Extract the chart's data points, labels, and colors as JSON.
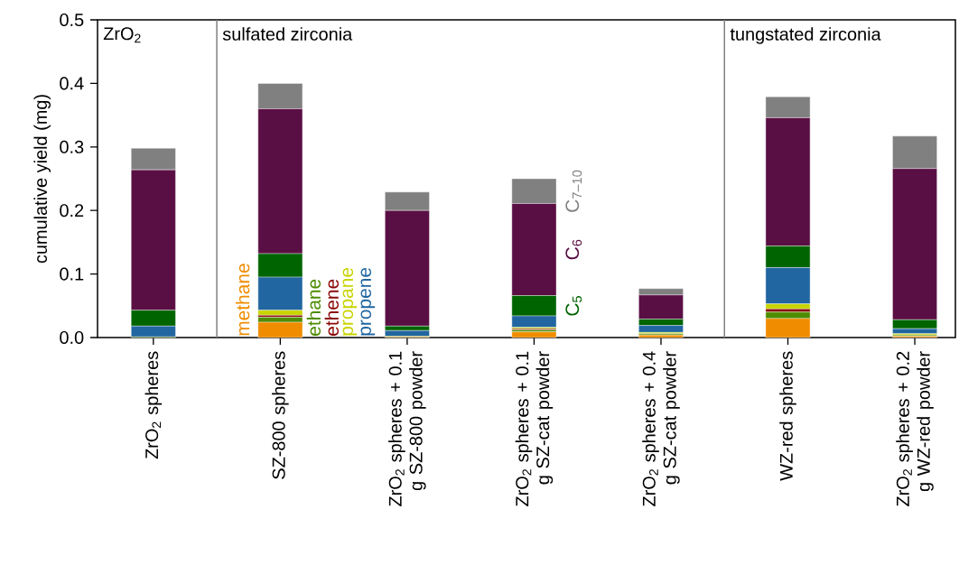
{
  "chart_data": {
    "type": "bar",
    "stacked": true,
    "ylabel": "cumulative yield (mg)",
    "categories": [
      "ZrO$_{2}$ spheres",
      "SZ-800 spheres",
      "ZrO$_{2}$ spheres + 0.1 g SZ-800 powder",
      "ZrO$_{2}$ spheres + 0.1 g SZ-cat powder",
      "ZrO$_{2}$ spheres + 0.4 g SZ-cat powder",
      "WZ-red spheres",
      "ZrO$_{2}$ spheres + 0.2 g WZ-red powder"
    ],
    "series": [
      {
        "name": "methane",
        "color": "#f08c00",
        "values": [
          null,
          0.024,
          0.001,
          0.009,
          0.004,
          0.03,
          0.002
        ]
      },
      {
        "name": "ethane",
        "color": "#4e8c00",
        "values": [
          0.001,
          0.008,
          0.001,
          0.003,
          0.002,
          0.01,
          0.002
        ]
      },
      {
        "name": "ethene",
        "color": "#8b0a0a",
        "values": [
          0.0,
          0.003,
          0.0,
          0.002,
          null,
          0.005,
          null
        ]
      },
      {
        "name": "propane",
        "color": "#c8d400",
        "values": [
          null,
          0.008,
          null,
          0.002,
          0.002,
          0.008,
          0.002
        ]
      },
      {
        "name": "propene",
        "color": "#2166a0",
        "values": [
          0.017,
          0.052,
          0.009,
          0.018,
          0.011,
          0.057,
          0.008
        ]
      },
      {
        "name": "C$_{5}$",
        "color": "#006400",
        "values": [
          0.025,
          0.037,
          0.007,
          0.032,
          0.01,
          0.034,
          0.014
        ]
      },
      {
        "name": "C$_{6}$",
        "color": "#5a0f44",
        "values": [
          0.221,
          0.228,
          0.182,
          0.145,
          0.038,
          0.202,
          0.238
        ]
      },
      {
        "name": "C$_{7–10}$",
        "color": "#808080",
        "values": [
          0.034,
          0.04,
          0.029,
          0.039,
          0.01,
          0.033,
          0.051
        ]
      }
    ],
    "ylim": [
      0,
      0.5
    ],
    "yticks": [
      {
        "value": 0,
        "label": "0.0"
      },
      0.1,
      0.2,
      0.3,
      0.4,
      0.5
    ],
    "annotations": [
      "ZrO$_{2}$",
      "sulfated zirconia",
      "tungstated zirconia"
    ]
  }
}
